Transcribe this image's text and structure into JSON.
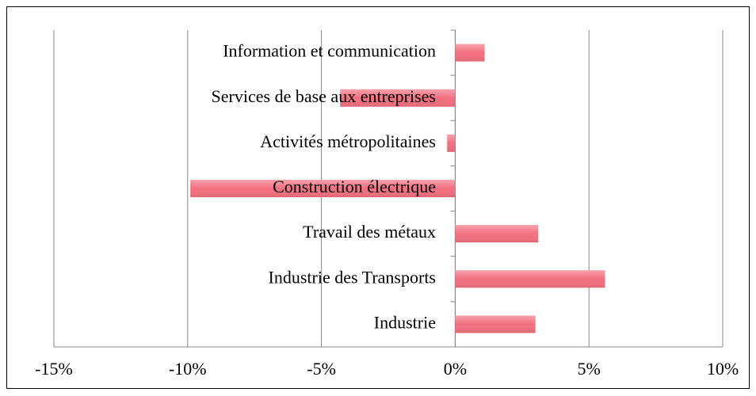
{
  "chart_data": {
    "type": "barh",
    "categories": [
      "Information et communication",
      "Services de base aux entreprises",
      "Activités métropolitaines",
      "Construction électrique",
      "Travail des métaux",
      "Industrie des Transports",
      "Industrie"
    ],
    "values": [
      1.1,
      -4.3,
      -0.3,
      -9.9,
      3.1,
      5.6,
      3.0
    ],
    "color": "#f2707f",
    "xlim": [
      -15,
      10
    ],
    "xticks": [
      {
        "value": -15,
        "label": "-15%"
      },
      {
        "value": -10,
        "label": "-10%"
      },
      {
        "value": -5,
        "label": "-5%"
      },
      {
        "value": 0,
        "label": "0%"
      },
      {
        "value": 5,
        "label": "5%"
      },
      {
        "value": 10,
        "label": "10%"
      }
    ],
    "grid": true
  }
}
